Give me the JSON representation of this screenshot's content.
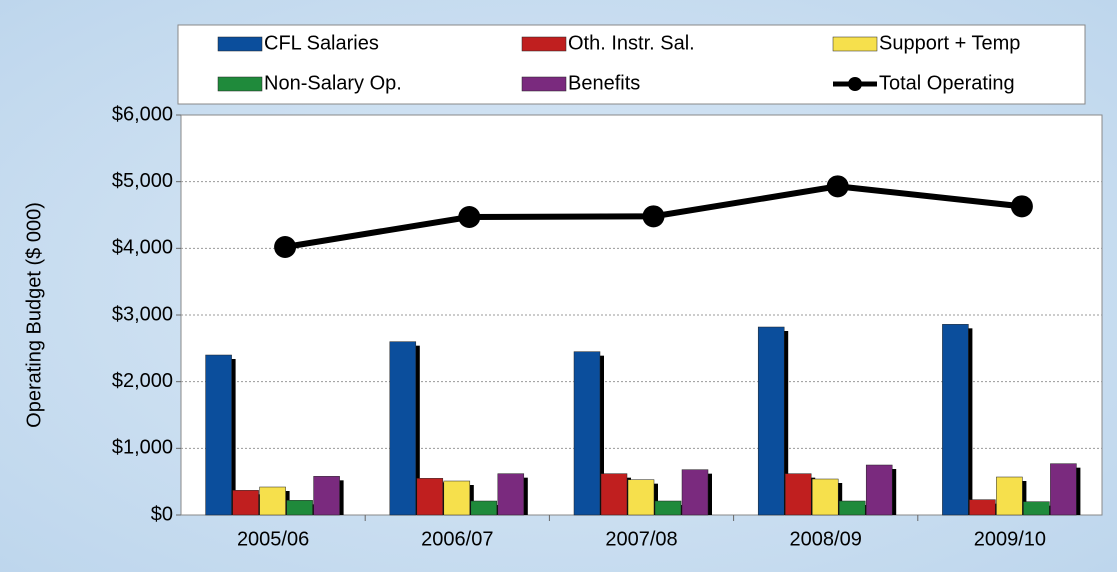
{
  "chart_data": {
    "type": "bar",
    "y_label": "Operating Budget ($ 000)",
    "categories": [
      "2005/06",
      "2006/07",
      "2007/08",
      "2008/09",
      "2009/10"
    ],
    "series": [
      {
        "name": "CFL Salaries",
        "color": "#0b4e9c",
        "values": [
          2400,
          2600,
          2450,
          2820,
          2860
        ]
      },
      {
        "name": "Oth. Instr. Sal.",
        "color": "#c01f1f",
        "values": [
          370,
          550,
          620,
          620,
          230
        ]
      },
      {
        "name": "Support + Temp",
        "color": "#f6e04c",
        "values": [
          420,
          510,
          530,
          540,
          570
        ]
      },
      {
        "name": "Non-Salary Op.",
        "color": "#1f8a3b",
        "values": [
          220,
          210,
          210,
          210,
          200
        ]
      },
      {
        "name": "Benefits",
        "color": "#7a2a7e",
        "values": [
          580,
          620,
          680,
          750,
          770
        ]
      },
      {
        "name": "Total Operating",
        "color": "#000000",
        "type": "line",
        "values": [
          4020,
          4470,
          4480,
          4930,
          4630
        ]
      }
    ],
    "ylim": [
      0,
      6000
    ],
    "yticks": [
      {
        "value": 0,
        "label": "$0"
      },
      {
        "value": 1000,
        "label": "$1,000"
      },
      {
        "value": 2000,
        "label": "$2,000"
      },
      {
        "value": 3000,
        "label": "$3,000"
      },
      {
        "value": 4000,
        "label": "$4,000"
      },
      {
        "value": 5000,
        "label": "$5,000"
      },
      {
        "value": 6000,
        "label": "$6,000"
      }
    ],
    "grid": true
  }
}
